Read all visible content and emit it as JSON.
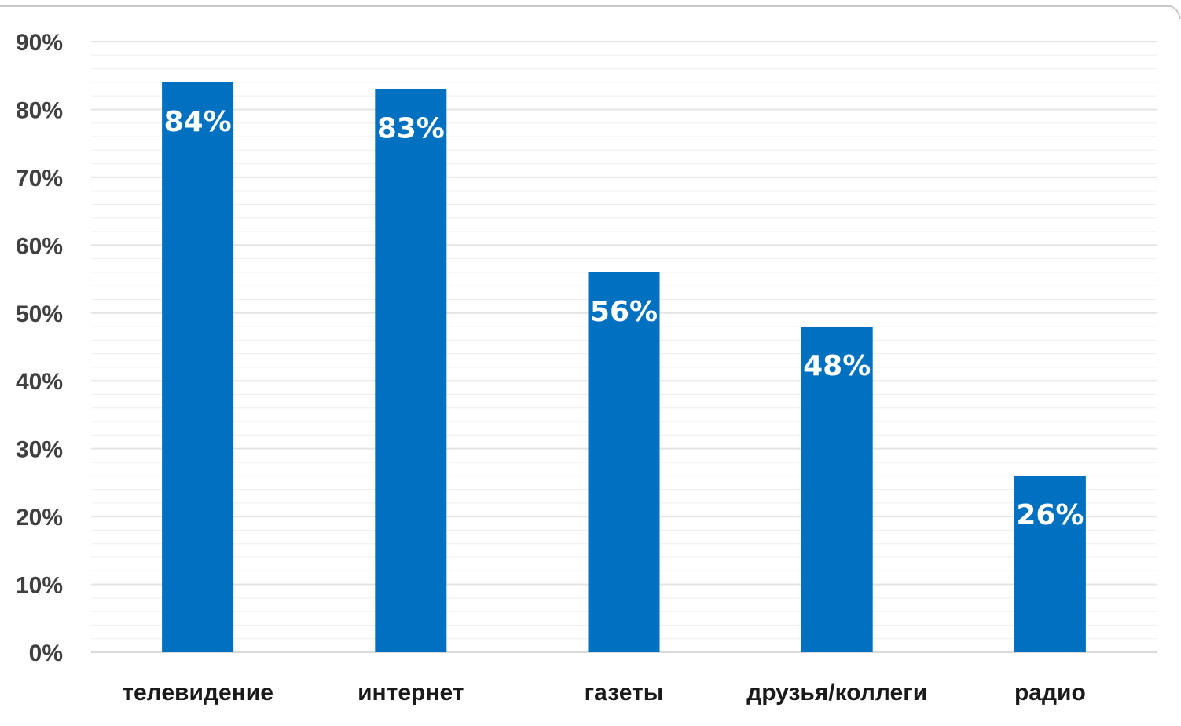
{
  "chart_data": {
    "type": "bar",
    "categories": [
      "телевидение",
      "интернет",
      "газеты",
      "друзья/коллеги",
      "радио"
    ],
    "values": [
      84,
      83,
      56,
      48,
      26
    ],
    "data_labels": [
      "84%",
      "83%",
      "56%",
      "48%",
      "26%"
    ],
    "ytick_labels": [
      "0%",
      "10%",
      "20%",
      "30%",
      "40%",
      "50%",
      "60%",
      "70%",
      "80%",
      "90%"
    ],
    "ylim": [
      0,
      90
    ],
    "title": "",
    "xlabel": "",
    "ylabel": "",
    "grid": true,
    "legend": "none",
    "bar_color": "#0070c0"
  }
}
